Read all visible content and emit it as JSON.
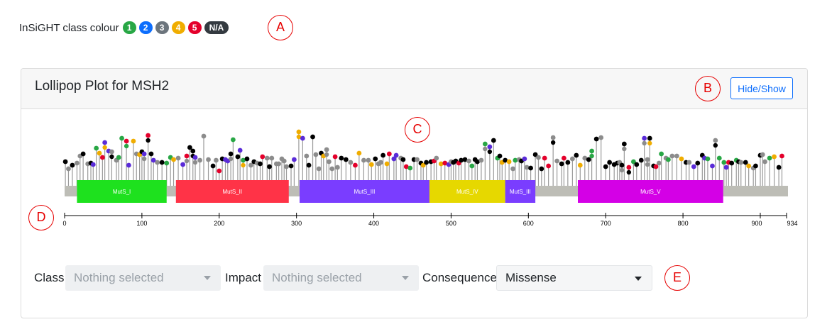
{
  "legend": {
    "title": "InSiGHT class colour",
    "badges": [
      {
        "label": "1",
        "color": "#28a745"
      },
      {
        "label": "2",
        "color": "#0d6efd"
      },
      {
        "label": "3",
        "color": "#6c757d"
      },
      {
        "label": "4",
        "color": "#f0ad00"
      },
      {
        "label": "5",
        "color": "#e4002b"
      },
      {
        "label": "N/A",
        "color": "#343a40"
      }
    ]
  },
  "markers": [
    "A",
    "B",
    "C",
    "D",
    "E"
  ],
  "card": {
    "title": "Lollipop Plot for MSH2",
    "toggle_label": "Hide/Show"
  },
  "domains": [
    {
      "name": "MutS_I",
      "start": 16,
      "end": 132,
      "color": "#1ee11e"
    },
    {
      "name": "MutS_II",
      "start": 144,
      "end": 290,
      "color": "#ff3347"
    },
    {
      "name": "MutS_III",
      "start": 304,
      "end": 472,
      "color": "#7a3dff"
    },
    {
      "name": "MutS_IV",
      "start": 472,
      "end": 570,
      "color": "#e6d800"
    },
    {
      "name": "MutS_III",
      "start": 570,
      "end": 609,
      "color": "#7a3dff"
    },
    {
      "name": "MutS_V",
      "start": 664,
      "end": 852,
      "color": "#d400e6"
    }
  ],
  "axis": {
    "min": 0,
    "max": 934,
    "ticks": [
      "0",
      "100",
      "200",
      "300",
      "400",
      "500",
      "600",
      "700",
      "800",
      "900",
      "934"
    ]
  },
  "filters": [
    {
      "label": "Class",
      "value": "Nothing selected",
      "disabled": true
    },
    {
      "label": "Impact",
      "value": "Nothing selected",
      "disabled": true
    },
    {
      "label": "Consequence",
      "value": "Missense",
      "disabled": false
    }
  ]
}
